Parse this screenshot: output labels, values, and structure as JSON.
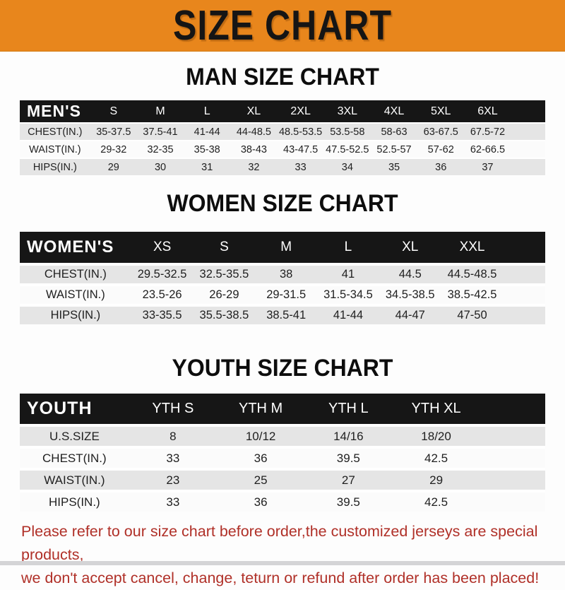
{
  "banner": {
    "title": "SIZE CHART",
    "bg_color": "#E8861C",
    "text_color": "#151515"
  },
  "sections": [
    {
      "heading": "MAN SIZE CHART",
      "table": {
        "header": [
          "MEN'S",
          "S",
          "M",
          "L",
          "XL",
          "2XL",
          "3XL",
          "4XL",
          "5XL",
          "6XL"
        ],
        "rows": [
          [
            "CHEST(IN.)",
            "35-37.5",
            "37.5-41",
            "41-44",
            "44-48.5",
            "48.5-53.5",
            "53.5-58",
            "58-63",
            "63-67.5",
            "67.5-72"
          ],
          [
            "WAIST(IN.)",
            "29-32",
            "32-35",
            "35-38",
            "38-43",
            "43-47.5",
            "47.5-52.5",
            "52.5-57",
            "57-62",
            "62-66.5"
          ],
          [
            "HIPS(IN.)",
            "29",
            "30",
            "31",
            "32",
            "33",
            "34",
            "35",
            "36",
            "37"
          ]
        ],
        "col_widths": [
          "13.4%",
          "8.9%",
          "8.9%",
          "8.9%",
          "8.9%",
          "8.9%",
          "8.9%",
          "8.9%",
          "8.9%",
          "8.9%",
          "6.5%"
        ]
      }
    },
    {
      "heading": "WOMEN SIZE CHART",
      "table": {
        "header": [
          "WOMEN'S",
          "XS",
          "S",
          "M",
          "L",
          "XL",
          "XXL"
        ],
        "rows": [
          [
            "CHEST(IN.)",
            "29.5-32.5",
            "32.5-35.5",
            "38",
            "41",
            "44.5",
            "44.5-48.5"
          ],
          [
            "WAIST(IN.)",
            "23.5-26",
            "26-29",
            "29-31.5",
            "31.5-34.5",
            "34.5-38.5",
            "38.5-42.5"
          ],
          [
            "HIPS(IN.)",
            "33-35.5",
            "35.5-38.5",
            "38.5-41",
            "41-44",
            "44-47",
            "47-50"
          ]
        ],
        "col_widths": [
          "21.2%",
          "11.8%",
          "11.8%",
          "11.8%",
          "11.8%",
          "11.8%",
          "11.8%",
          "8%"
        ]
      }
    },
    {
      "heading": "YOUTH SIZE CHART",
      "table": {
        "header": [
          "YOUTH",
          "YTH S",
          "YTH M",
          "YTH L",
          "YTH XL"
        ],
        "rows": [
          [
            "U.S.SIZE",
            "8",
            "10/12",
            "14/16",
            "18/20"
          ],
          [
            "CHEST(IN.)",
            "33",
            "36",
            "39.5",
            "42.5"
          ],
          [
            "WAIST(IN.)",
            "23",
            "25",
            "27",
            "29"
          ],
          [
            "HIPS(IN.)",
            "33",
            "36",
            "39.5",
            "42.5"
          ]
        ],
        "col_widths": [
          "20.8%",
          "16.7%",
          "16.7%",
          "16.7%",
          "16.7%",
          "12.4%"
        ]
      }
    }
  ],
  "footer": {
    "line1": "Please refer to our size chart before order,the customized jerseys are special products,",
    "line2": "we don't accept cancel, change, teturn or refund after order has been placed!",
    "text_color": "#B03028"
  },
  "table_colors": {
    "header_bg": "#161616",
    "header_text": "#FFFFFF",
    "row_gray": "#E5E5E5",
    "row_white": "#FBFBFB"
  }
}
